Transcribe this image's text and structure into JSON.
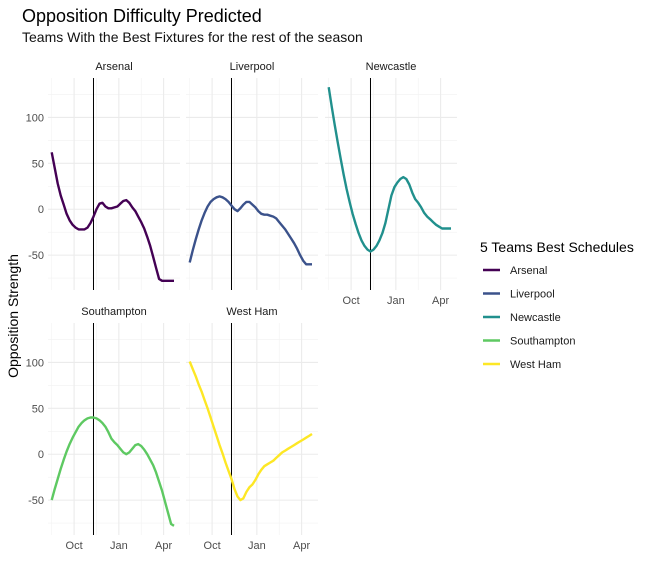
{
  "chart_data": {
    "type": "line",
    "title": "Opposition Difficulty Predicted",
    "subtitle": "Teams With the Best Fixtures for the rest of the season",
    "ylabel": "Opposition Strength",
    "xlabel": "",
    "x_ticks": [
      "Oct",
      "Jan",
      "Apr"
    ],
    "x_tick_month_index": [
      1,
      4,
      7
    ],
    "xlim_month_index": [
      -0.75,
      8.1
    ],
    "y_ticks": [
      -50,
      0,
      50,
      100
    ],
    "ylim": [
      -88,
      143
    ],
    "vline_month_index": 2.3,
    "grid": true,
    "legend": {
      "title": "5 Teams Best Schedules",
      "position": "right"
    },
    "series": [
      {
        "name": "Arsenal",
        "color": "#440154",
        "x": [
          -0.5,
          -0.3,
          -0.1,
          0.1,
          0.3,
          0.5,
          0.7,
          0.9,
          1.1,
          1.3,
          1.5,
          1.7,
          1.9,
          2.1,
          2.3,
          2.5,
          2.7,
          2.9,
          3.1,
          3.3,
          3.5,
          3.7,
          3.9,
          4.1,
          4.3,
          4.5,
          4.7,
          4.9,
          5.1,
          5.3,
          5.5,
          5.7,
          5.9,
          6.1,
          6.3,
          6.5,
          6.7,
          6.9,
          7.1,
          7.3,
          7.5,
          7.7
        ],
        "y": [
          62,
          45,
          28,
          15,
          5,
          -5,
          -12,
          -17,
          -20,
          -22,
          -22,
          -22,
          -20,
          -15,
          -8,
          0,
          6,
          7,
          3,
          1,
          1,
          2,
          3,
          6,
          9,
          10,
          7,
          2,
          -2,
          -8,
          -14,
          -21,
          -30,
          -40,
          -52,
          -64,
          -76,
          -78,
          -78,
          -78,
          -78,
          -78
        ]
      },
      {
        "name": "Liverpool",
        "color": "#3b528b",
        "x": [
          -0.5,
          -0.3,
          -0.1,
          0.1,
          0.3,
          0.5,
          0.7,
          0.9,
          1.1,
          1.3,
          1.5,
          1.7,
          1.9,
          2.1,
          2.3,
          2.5,
          2.7,
          2.9,
          3.1,
          3.3,
          3.5,
          3.7,
          3.9,
          4.1,
          4.3,
          4.5,
          4.7,
          4.9,
          5.1,
          5.3,
          5.5,
          5.7,
          5.9,
          6.1,
          6.3,
          6.5,
          6.7,
          6.9,
          7.1,
          7.3,
          7.5,
          7.7
        ],
        "y": [
          -58,
          -45,
          -33,
          -22,
          -12,
          -4,
          3,
          8,
          11,
          13,
          14,
          13,
          11,
          8,
          4,
          0,
          -2,
          1,
          5,
          8,
          8,
          5,
          2,
          -2,
          -5,
          -6,
          -6,
          -7,
          -8,
          -10,
          -14,
          -18,
          -22,
          -27,
          -32,
          -37,
          -43,
          -50,
          -56,
          -60,
          -60,
          -60
        ]
      },
      {
        "name": "Newcastle",
        "color": "#21908d",
        "x": [
          -0.5,
          -0.3,
          -0.1,
          0.1,
          0.3,
          0.5,
          0.7,
          0.9,
          1.1,
          1.3,
          1.5,
          1.7,
          1.9,
          2.1,
          2.3,
          2.5,
          2.7,
          2.9,
          3.1,
          3.3,
          3.5,
          3.7,
          3.9,
          4.1,
          4.3,
          4.5,
          4.7,
          4.9,
          5.1,
          5.3,
          5.5,
          5.7,
          5.9,
          6.1,
          6.3,
          6.5,
          6.7,
          6.9,
          7.1,
          7.3,
          7.5,
          7.7
        ],
        "y": [
          133,
          112,
          92,
          73,
          55,
          38,
          22,
          8,
          -5,
          -16,
          -26,
          -34,
          -40,
          -44,
          -46,
          -44,
          -40,
          -34,
          -26,
          -15,
          0,
          15,
          24,
          29,
          33,
          35,
          33,
          27,
          18,
          11,
          7,
          2,
          -4,
          -8,
          -11,
          -14,
          -17,
          -19,
          -21,
          -21,
          -21,
          -21
        ]
      },
      {
        "name": "Southampton",
        "color": "#5ec962",
        "x": [
          -0.5,
          -0.3,
          -0.1,
          0.1,
          0.3,
          0.5,
          0.7,
          0.9,
          1.1,
          1.3,
          1.5,
          1.7,
          1.9,
          2.1,
          2.3,
          2.5,
          2.7,
          2.9,
          3.1,
          3.3,
          3.5,
          3.7,
          3.9,
          4.1,
          4.3,
          4.5,
          4.7,
          4.9,
          5.1,
          5.3,
          5.5,
          5.7,
          5.9,
          6.1,
          6.3,
          6.5,
          6.7,
          6.9,
          7.1,
          7.3,
          7.5,
          7.7
        ],
        "y": [
          -50,
          -38,
          -27,
          -16,
          -6,
          3,
          11,
          18,
          24,
          30,
          34,
          37,
          39,
          40,
          40,
          39,
          37,
          34,
          30,
          24,
          17,
          13,
          10,
          6,
          2,
          0,
          2,
          6,
          10,
          11,
          9,
          5,
          0,
          -6,
          -12,
          -20,
          -30,
          -40,
          -52,
          -64,
          -76,
          -78
        ]
      },
      {
        "name": "West Ham",
        "color": "#fde725",
        "x": [
          -0.5,
          -0.3,
          -0.1,
          0.1,
          0.3,
          0.5,
          0.7,
          0.9,
          1.1,
          1.3,
          1.5,
          1.7,
          1.9,
          2.1,
          2.3,
          2.5,
          2.7,
          2.9,
          3.1,
          3.3,
          3.5,
          3.7,
          3.9,
          4.1,
          4.3,
          4.5,
          4.7,
          4.9,
          5.1,
          5.3,
          5.5,
          5.7,
          5.9,
          6.1,
          6.3,
          6.5,
          6.7,
          6.9,
          7.1,
          7.3,
          7.5,
          7.7
        ],
        "y": [
          101,
          93,
          85,
          76,
          68,
          59,
          50,
          40,
          30,
          20,
          10,
          1,
          -9,
          -18,
          -27,
          -38,
          -46,
          -50,
          -48,
          -41,
          -36,
          -33,
          -28,
          -22,
          -17,
          -13,
          -11,
          -9,
          -7,
          -4,
          -1,
          2,
          4,
          6,
          8,
          10,
          12,
          14,
          16,
          18,
          20,
          22
        ]
      }
    ],
    "panels": [
      {
        "label": "Arsenal",
        "series_index": 0,
        "col": 0,
        "row": 0,
        "show_x_ticks": false,
        "show_y_ticks": true
      },
      {
        "label": "Liverpool",
        "series_index": 1,
        "col": 1,
        "row": 0,
        "show_x_ticks": false,
        "show_y_ticks": false
      },
      {
        "label": "Newcastle",
        "series_index": 2,
        "col": 2,
        "row": 0,
        "show_x_ticks": true,
        "show_y_ticks": false
      },
      {
        "label": "Southampton",
        "series_index": 3,
        "col": 0,
        "row": 1,
        "show_x_ticks": true,
        "show_y_ticks": true
      },
      {
        "label": "West Ham",
        "series_index": 4,
        "col": 1,
        "row": 1,
        "show_x_ticks": true,
        "show_y_ticks": false
      }
    ]
  }
}
